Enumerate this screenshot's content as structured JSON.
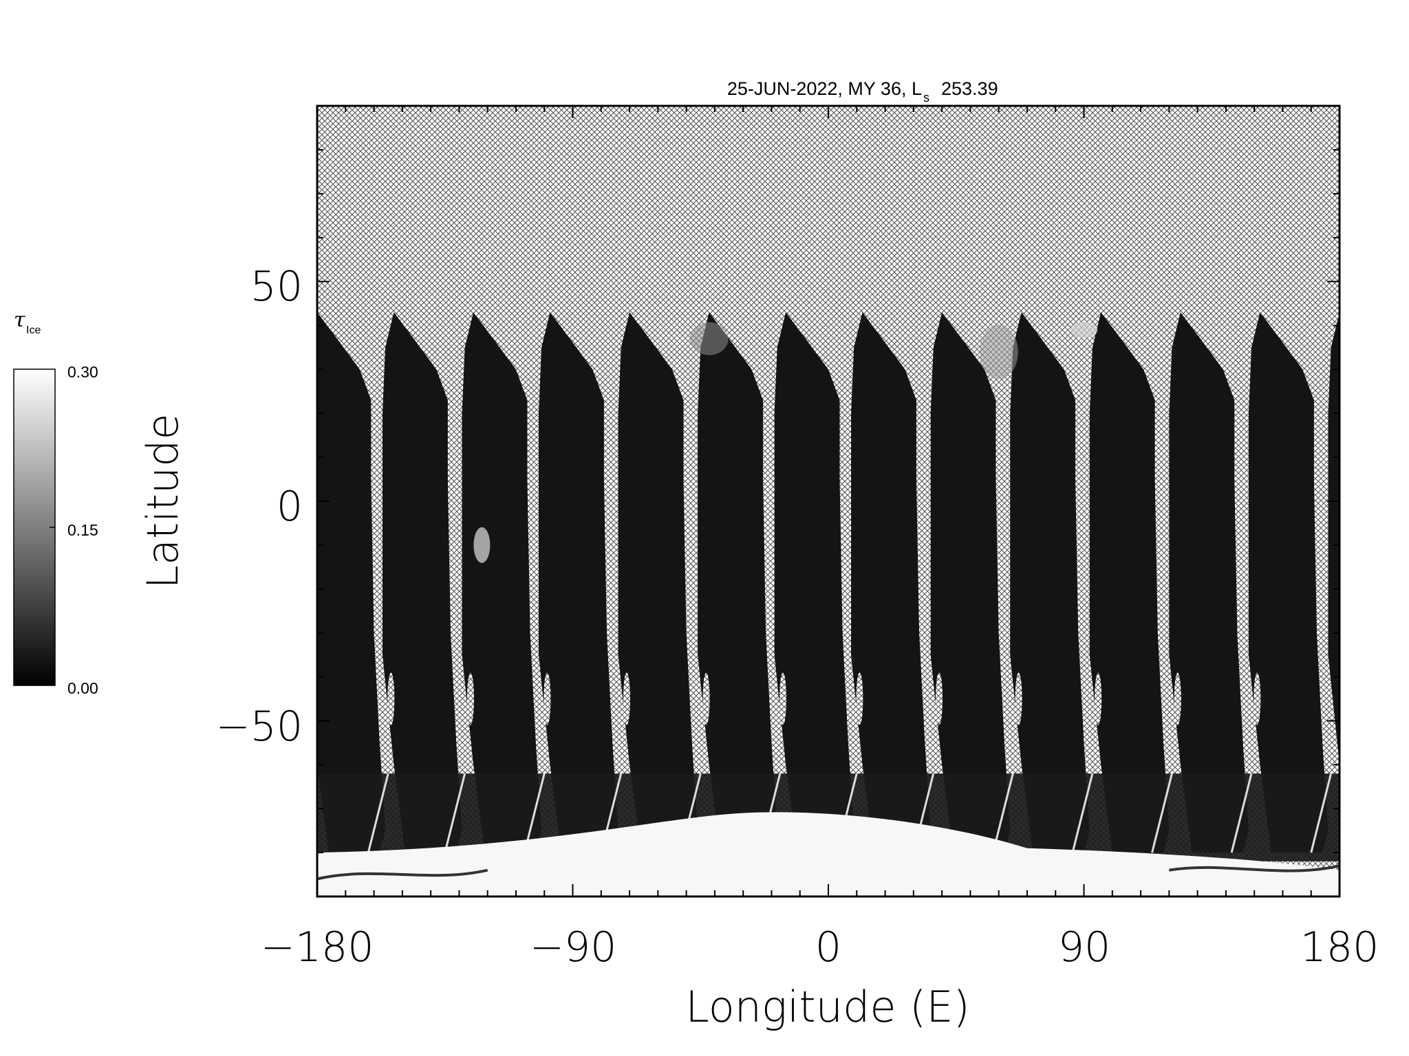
{
  "chart_data": {
    "type": "heatmap",
    "title": "25-JUN-2022, MY 36,  L",
    "title_ls_subscript": "s",
    "title_ls_value": "253.39",
    "xlabel": "Longitude (E)",
    "ylabel": "Latitude",
    "xlim": [
      -180,
      180
    ],
    "ylim": [
      -90,
      90
    ],
    "x_tick_labels": [
      "−180",
      "−90",
      "0",
      "90",
      "180"
    ],
    "x_ticks": [
      -180,
      -90,
      0,
      90,
      180
    ],
    "y_tick_labels": [
      "50",
      "0",
      "−50"
    ],
    "y_ticks": [
      50,
      0,
      -50
    ],
    "colorbar": {
      "symbol": "τ",
      "subscript": "Ice",
      "tick_labels": [
        "0.30",
        "0.15",
        "0.00"
      ],
      "range": [
        0.0,
        0.3
      ]
    },
    "no_data_pattern": "cross-hatch",
    "colors": {
      "low": "#141414",
      "high": "#f7f7f7",
      "hatch": "#555555"
    },
    "orbit_swaths": {
      "count": 13,
      "north_edge_lat": 43,
      "south_edge_lat": -80,
      "start_lons": [
        -180,
        -153,
        -125,
        -98,
        -70,
        -42,
        -15,
        12,
        40,
        68,
        96,
        124,
        152
      ]
    },
    "features": [
      {
        "name": "south polar cap",
        "value": 0.3,
        "lat_range": [
          -90,
          -72
        ]
      },
      {
        "name": "bright cloud",
        "lon": -122,
        "lat": -10,
        "value": 0.22
      }
    ]
  }
}
